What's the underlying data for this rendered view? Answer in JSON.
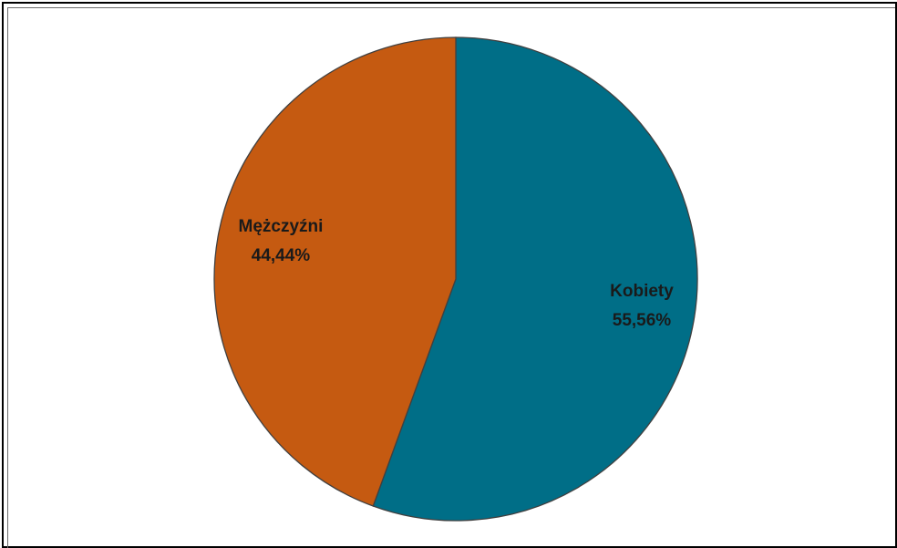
{
  "chart_data": {
    "type": "pie",
    "title": "",
    "slices": [
      {
        "name": "Kobiety",
        "value": 55.56,
        "label": "55,56%",
        "color": "#006E87"
      },
      {
        "name": "Mężczyźni",
        "value": 44.44,
        "label": "44,44%",
        "color": "#C55A11"
      }
    ],
    "start_angle_deg": 0,
    "direction": "clockwise",
    "stroke_color": "#404040",
    "legend": "none",
    "labels_inside": true
  }
}
